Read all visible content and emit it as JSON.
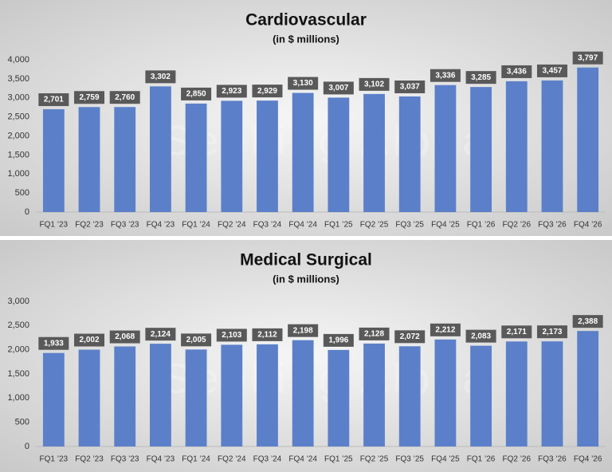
{
  "chart_data": [
    {
      "type": "bar",
      "title": "Cardiovascular",
      "subtitle": "(in $ millions)",
      "watermark": "Seeking Alpha",
      "categories": [
        "FQ1 ’23",
        "FQ2 ’23",
        "FQ3 ’23",
        "FQ4 ’23",
        "FQ1 ’24",
        "FQ2 ’24",
        "FQ3 ’24",
        "FQ4 ’24",
        "FQ1 ’25",
        "FQ2 ’25",
        "FQ3 ’25",
        "FQ4 ’25",
        "FQ1 ’26",
        "FQ2 ’26",
        "FQ3 ’26",
        "FQ4 ’26"
      ],
      "values": [
        2701,
        2759,
        2760,
        3302,
        2850,
        2923,
        2929,
        3130,
        3007,
        3102,
        3037,
        3336,
        3285,
        3436,
        3457,
        3797
      ],
      "value_labels": [
        "2,701",
        "2,759",
        "2,760",
        "3,302",
        "2,850",
        "2,923",
        "2,929",
        "3,130",
        "3,007",
        "3,102",
        "3,037",
        "3,336",
        "3,285",
        "3,436",
        "3,457",
        "3,797"
      ],
      "color": "#5b80c9",
      "ylim": [
        0,
        4000
      ],
      "yticks": [
        0,
        {
          "value": 500,
          "label": "500"
        },
        {
          "value": 1000,
          "label": "1,000"
        },
        {
          "value": 1500,
          "label": "1,500"
        },
        {
          "value": 2000,
          "label": "2,000"
        },
        {
          "value": 2500,
          "label": "2,500"
        },
        {
          "value": 3000,
          "label": "3,000"
        },
        {
          "value": 3500,
          "label": "3,500"
        },
        {
          "value": 4000,
          "label": "4,000"
        }
      ]
    },
    {
      "type": "bar",
      "title": "Medical Surgical",
      "subtitle": "(in $ millions)",
      "watermark": "Seeking Alpha",
      "categories": [
        "FQ1 ’23",
        "FQ2 ’23",
        "FQ3 ’23",
        "FQ4 ’23",
        "FQ1 ’24",
        "FQ2 ’24",
        "FQ3 ’24",
        "FQ4 ’24",
        "FQ1 ’25",
        "FQ2 ’25",
        "FQ3 ’25",
        "FQ4 ’25",
        "FQ1 ’26",
        "FQ2 ’26",
        "FQ3 ’26",
        "FQ4 ’26"
      ],
      "values": [
        1933,
        2002,
        2068,
        2124,
        2005,
        2103,
        2112,
        2198,
        1996,
        2128,
        2072,
        2212,
        2083,
        2171,
        2173,
        2388
      ],
      "value_labels": [
        "1,933",
        "2,002",
        "2,068",
        "2,124",
        "2,005",
        "2,103",
        "2,112",
        "2,198",
        "1,996",
        "2,128",
        "2,072",
        "2,212",
        "2,083",
        "2,171",
        "2,173",
        "2,388"
      ],
      "color": "#5b80c9",
      "ylim": [
        0,
        3000
      ],
      "yticks": [
        0,
        {
          "value": 500,
          "label": "500"
        },
        {
          "value": 1000,
          "label": "1,000"
        },
        {
          "value": 1500,
          "label": "1,500"
        },
        {
          "value": 2000,
          "label": "2,000"
        },
        {
          "value": 2500,
          "label": "2,500"
        },
        {
          "value": 3000,
          "label": "3,000"
        }
      ]
    }
  ]
}
